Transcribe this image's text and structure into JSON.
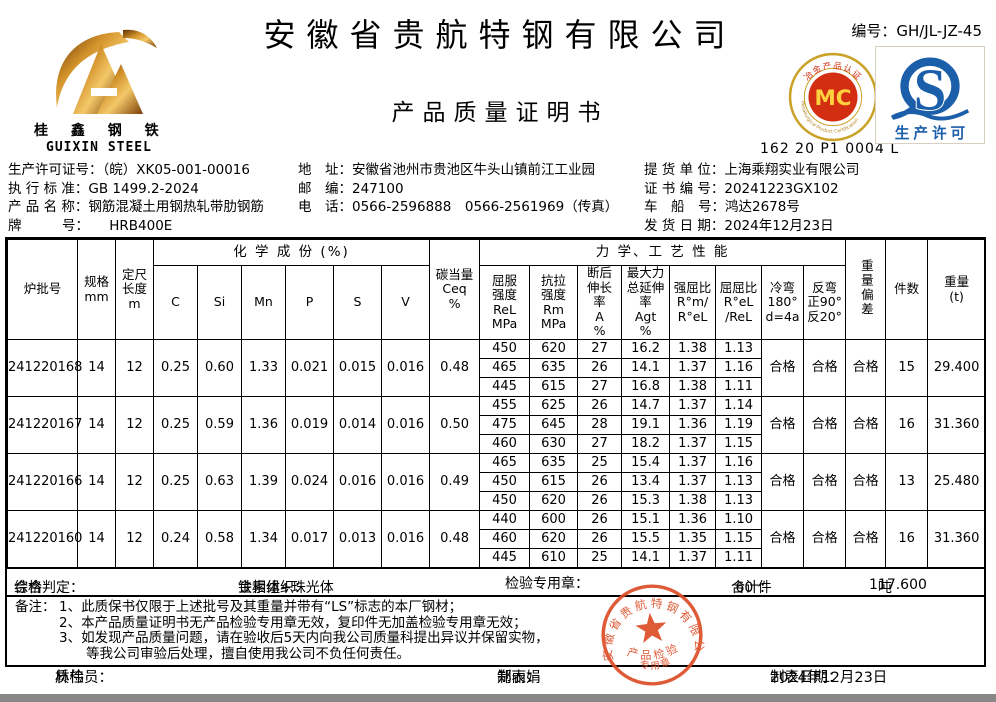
{
  "header": {
    "company_name": "安徽省贵航特钢有限公司",
    "doc_title": "产品质量证明书",
    "serial_label": "编号：",
    "serial_value": "GH/JL-JZ-45",
    "logo": {
      "name_cn": "桂 鑫 钢 铁",
      "name_en": "GUIXIN STEEL"
    },
    "mc_badge": {
      "top_text": "冶金产品认证",
      "center_text": "MC",
      "bottom_text": "Metallurgical Product Certification",
      "code": "162 20 P1 0004 L"
    },
    "qs_badge": {
      "letter": "S",
      "label": "生产许可"
    }
  },
  "info": {
    "col1": [
      {
        "label": "生产许可证号：",
        "value": "（皖）XK05-001-00016"
      },
      {
        "label": "执 行 标 准：",
        "value": "GB 1499.2-2024"
      },
      {
        "label": "产 品 名 称：",
        "value": "钢筋混凝土用钢热轧带肋钢筋"
      },
      {
        "label": "牌　　　号：",
        "value": "　　HRB400E"
      }
    ],
    "col2": [
      {
        "label": "地　址：",
        "value": "安徽省池州市贵池区牛头山镇前江工业园"
      },
      {
        "label": "邮　编：",
        "value": "247100"
      },
      {
        "label": "电　话：",
        "value": "0566-2596888　0566-2561969（传真）"
      }
    ],
    "col3": [
      {
        "label": "提 货 单 位：",
        "value": "上海乘翔实业有限公司"
      },
      {
        "label": "证 书 编 号：",
        "value": "20241223GX102"
      },
      {
        "label": "车　船　号：",
        "value": "鸿达2678号"
      },
      {
        "label": "发 货 日 期：",
        "value": "2024年12月23日"
      }
    ]
  },
  "table": {
    "headers": {
      "batch": "炉批号",
      "spec": "规格\nmm",
      "length": "定尺\n长度\nm",
      "chem_group": "化 学 成 份 (%)",
      "chem": [
        "C",
        "Si",
        "Mn",
        "P",
        "S",
        "V"
      ],
      "ceq": "碳当量\nCeq\n%",
      "mech_group": "力 学、工 艺 性 能",
      "yield": "屈服\n强度\nReL\nMPa",
      "tensile": "抗拉\n强度\nRm\nMPa",
      "elongation": "断后\n伸长\n率\nA\n%",
      "agt": "最大力\n总延伸\n率\nAgt\n%",
      "ratio1": "强屈比\nR°m/\nR°eL",
      "ratio2": "屈屈比\nR°eL\n/ReL",
      "cold_bend": "冷弯\n180°\nd=4a",
      "reverse_bend": "反弯\n正90°\n反20°",
      "weight_dev": "重量偏差",
      "pieces": "件数",
      "weight": "重量\n(t)"
    },
    "batches": [
      {
        "batch_no": "241220168",
        "spec_mm": "14",
        "length_m": "12",
        "chem": [
          "0.25",
          "0.60",
          "1.33",
          "0.021",
          "0.015",
          "0.016"
        ],
        "ceq": "0.48",
        "mech": [
          [
            "450",
            "620",
            "27",
            "16.2",
            "1.38",
            "1.13"
          ],
          [
            "465",
            "635",
            "26",
            "14.1",
            "1.37",
            "1.16"
          ],
          [
            "445",
            "615",
            "27",
            "16.8",
            "1.38",
            "1.11"
          ]
        ],
        "cold_bend": "合格",
        "reverse_bend": "合格",
        "weight_deviation": "合格",
        "pieces": "15",
        "weight_t": "29.400"
      },
      {
        "batch_no": "241220167",
        "spec_mm": "14",
        "length_m": "12",
        "chem": [
          "0.25",
          "0.59",
          "1.36",
          "0.019",
          "0.014",
          "0.016"
        ],
        "ceq": "0.50",
        "mech": [
          [
            "455",
            "625",
            "26",
            "14.7",
            "1.37",
            "1.14"
          ],
          [
            "475",
            "645",
            "28",
            "19.1",
            "1.36",
            "1.19"
          ],
          [
            "460",
            "630",
            "27",
            "18.2",
            "1.37",
            "1.15"
          ]
        ],
        "cold_bend": "合格",
        "reverse_bend": "合格",
        "weight_deviation": "合格",
        "pieces": "16",
        "weight_t": "31.360"
      },
      {
        "batch_no": "241220166",
        "spec_mm": "14",
        "length_m": "12",
        "chem": [
          "0.25",
          "0.63",
          "1.39",
          "0.024",
          "0.016",
          "0.016"
        ],
        "ceq": "0.49",
        "mech": [
          [
            "465",
            "635",
            "25",
            "15.4",
            "1.37",
            "1.16"
          ],
          [
            "450",
            "615",
            "26",
            "13.4",
            "1.37",
            "1.13"
          ],
          [
            "450",
            "620",
            "26",
            "15.3",
            "1.38",
            "1.13"
          ]
        ],
        "cold_bend": "合格",
        "reverse_bend": "合格",
        "weight_deviation": "合格",
        "pieces": "13",
        "weight_t": "25.480"
      },
      {
        "batch_no": "241220160",
        "spec_mm": "14",
        "length_m": "12",
        "chem": [
          "0.24",
          "0.58",
          "1.34",
          "0.017",
          "0.013",
          "0.016"
        ],
        "ceq": "0.48",
        "mech": [
          [
            "440",
            "600",
            "26",
            "15.1",
            "1.36",
            "1.10"
          ],
          [
            "460",
            "620",
            "26",
            "15.5",
            "1.35",
            "1.15"
          ],
          [
            "445",
            "610",
            "25",
            "14.1",
            "1.37",
            "1.11"
          ]
        ],
        "cold_bend": "合格",
        "reverse_bend": "合格",
        "weight_deviation": "合格",
        "pieces": "16",
        "weight_t": "31.360"
      }
    ]
  },
  "summary": {
    "judgement_label": "综合判定：",
    "judgement": "合格",
    "structure_label": "金相组织：",
    "structure": "铁素体+珠光体",
    "stamp_label": "检验专用章：",
    "total_label": "合计：",
    "total_pieces": "60 件",
    "total_weight": "117.600",
    "total_weight_unit": "吨"
  },
  "notes": {
    "label": "备注：",
    "lines": [
      "1、此质保书仅限于上述批号及其重量并带有“LS”标志的本厂钢材；",
      "2、本产品质量证明书无产品检验专用章无效，复印件无加盖检验专用章无效；",
      "3、如发现产品质量问题，请在验收后5天内向我公司质量科提出异议并保留实物，",
      "　　等我公司审验后处理，擅自使用我公司不负任何责任。"
    ]
  },
  "stamp": {
    "ring_text": "安徽省贵航特钢有限公司",
    "line1": "产品检验",
    "line2": "专用章",
    "color": "#dd4e28"
  },
  "footer": {
    "inspector_label": "质检员：",
    "inspector": "林伟",
    "preparer_label": "制表：",
    "preparer": "郑丽娟",
    "date_label": "制表日期：",
    "date": "2024年12月23日"
  }
}
